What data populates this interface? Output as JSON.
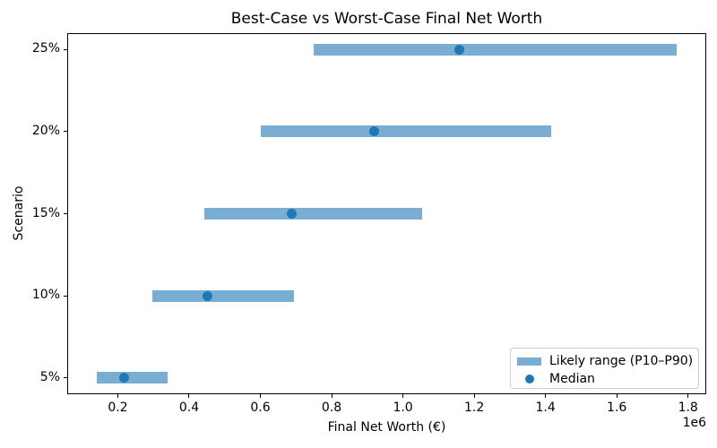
{
  "chart_data": {
    "type": "bar",
    "orientation": "horizontal",
    "title": "Best-Case vs Worst-Case Final Net Worth",
    "xlabel": "Final Net Worth (€)",
    "ylabel": "Scenario",
    "x_offset_text": "1e6",
    "categories": [
      "5%",
      "10%",
      "15%",
      "20%",
      "25%"
    ],
    "series": [
      {
        "name": "Likely range (P10–P90)",
        "type": "range",
        "p10": [
          140000,
          297000,
          444000,
          600000,
          750000
        ],
        "p90": [
          340000,
          694000,
          1055000,
          1415000,
          1769000
        ]
      },
      {
        "name": "Median",
        "type": "point",
        "values": [
          218000,
          452000,
          688000,
          920000,
          1157000
        ]
      }
    ],
    "xlim": [
      58000,
      1851000
    ],
    "ylim": [
      -0.2,
      4.2
    ],
    "x_ticks": [
      200000,
      400000,
      600000,
      800000,
      1000000,
      1200000,
      1400000,
      1600000,
      1800000
    ],
    "x_tick_labels": [
      "0.2",
      "0.4",
      "0.6",
      "0.8",
      "1.0",
      "1.2",
      "1.4",
      "1.6",
      "1.8"
    ],
    "grid": false,
    "legend_position": "lower right",
    "colors": {
      "range_bar": "#79ADD2",
      "median_dot": "#1F77B4",
      "spine": "#000000",
      "legend_border": "#CCCCCC"
    }
  }
}
